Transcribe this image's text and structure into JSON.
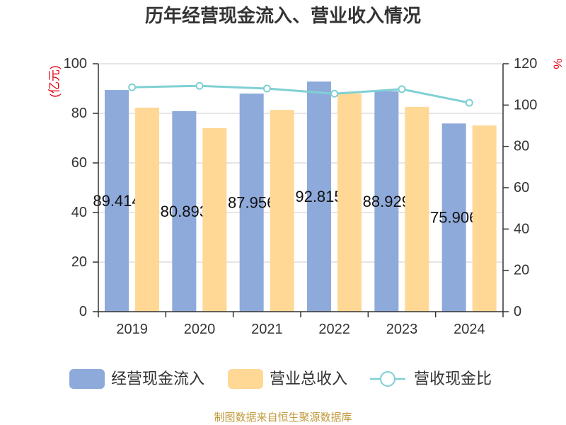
{
  "colors": {
    "cash_inflow": "#8EAADA",
    "revenue": "#FFD896",
    "ratio_line": "#7FD0D4",
    "marker_fill": "#FFFFFF",
    "axis_title": "#E60012",
    "grid": "#CCCCCC",
    "axis": "#333333",
    "text": "#333333",
    "data_label": "#111111",
    "source_note": "#C09A3C"
  },
  "chart_data": {
    "type": "bar",
    "title": "历年经营现金流入、营业收入情况",
    "categories": [
      "2019",
      "2020",
      "2021",
      "2022",
      "2023",
      "2024"
    ],
    "y_left": {
      "label": "(亿元)",
      "ylim": [
        0,
        100
      ],
      "ticks": [
        0,
        20,
        40,
        60,
        80,
        100
      ]
    },
    "y_right": {
      "label": "%",
      "ylim": [
        0,
        120
      ],
      "ticks": [
        0,
        20,
        40,
        60,
        80,
        100,
        120
      ]
    },
    "series": [
      {
        "name": "经营现金流入",
        "type": "bar",
        "axis": "left",
        "data_labels": true,
        "values": [
          89.414,
          80.893,
          87.956,
          92.815,
          88.929,
          75.906
        ]
      },
      {
        "name": "营业总收入",
        "type": "bar",
        "axis": "left",
        "values": [
          82.3,
          74.0,
          81.4,
          88.0,
          82.6,
          75.1
        ]
      },
      {
        "name": "营收现金比",
        "type": "line",
        "axis": "right",
        "values": [
          108.6,
          109.3,
          108.0,
          105.5,
          107.7,
          101.1
        ]
      }
    ],
    "legend": "bottom",
    "grid": true
  },
  "source_note": "制图数据来自恒生聚源数据库"
}
